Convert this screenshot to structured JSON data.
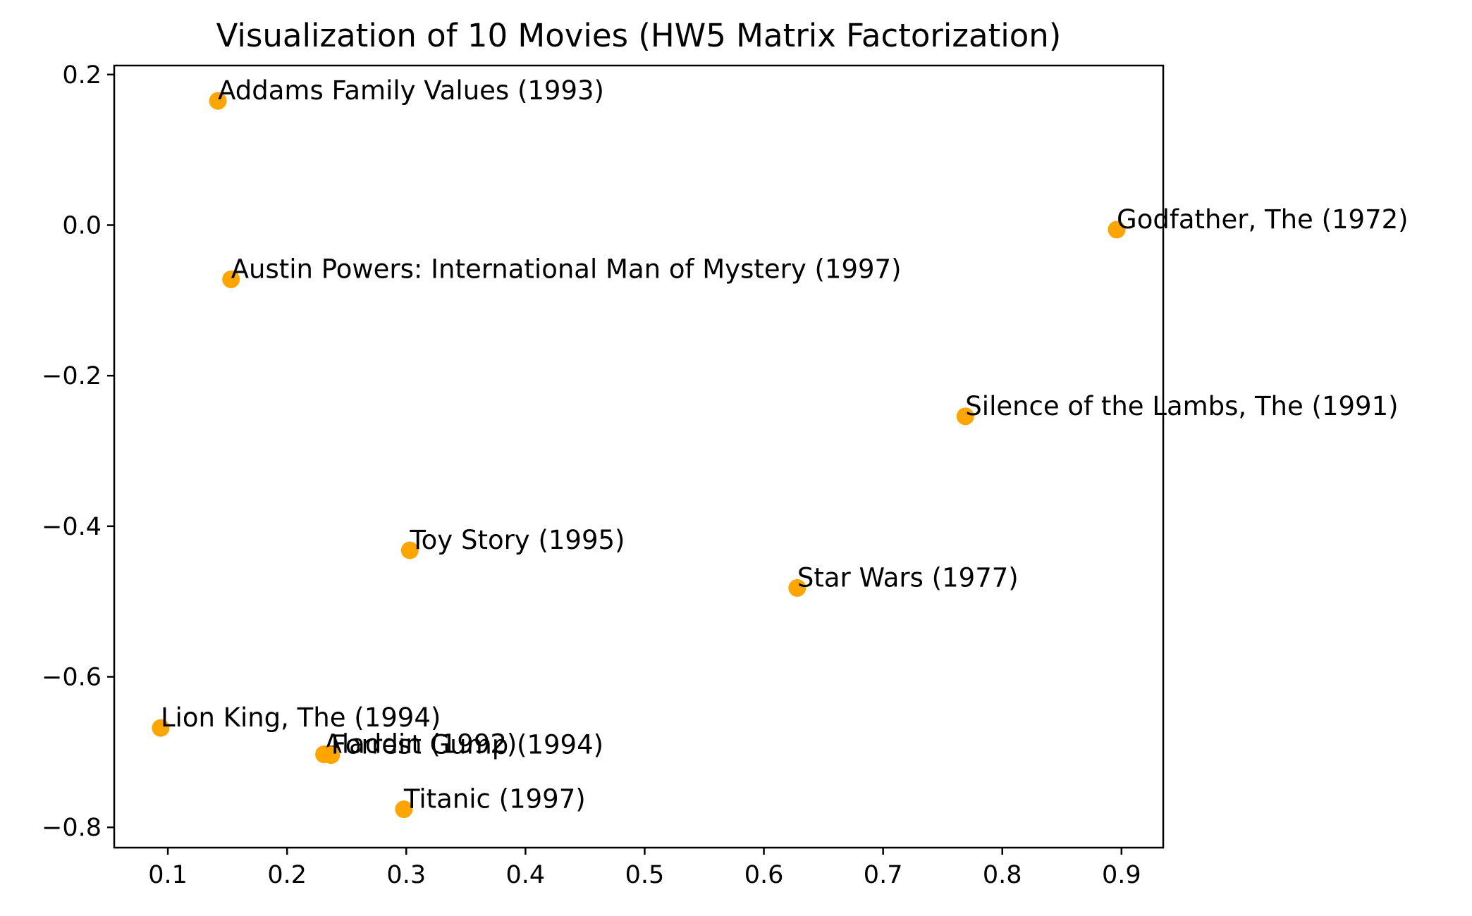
{
  "chart_data": {
    "type": "scatter",
    "title": "Visualization of 10 Movies (HW5 Matrix Factorization)",
    "xlabel": "",
    "ylabel": "",
    "xlim": [
      0.055,
      0.935
    ],
    "ylim": [
      -0.827,
      0.212
    ],
    "xticks": [
      0.1,
      0.2,
      0.3,
      0.4,
      0.5,
      0.6,
      0.7,
      0.8,
      0.9
    ],
    "yticks": [
      0.2,
      0.0,
      -0.2,
      -0.4,
      -0.6,
      -0.8
    ],
    "xtick_labels": [
      "0.1",
      "0.2",
      "0.3",
      "0.4",
      "0.5",
      "0.6",
      "0.7",
      "0.8",
      "0.9"
    ],
    "ytick_labels": [
      "0.2",
      "0.0",
      "−0.2",
      "−0.4",
      "−0.6",
      "−0.8"
    ],
    "grid": false,
    "marker_color": "#ffa500",
    "points": [
      {
        "label": "Addams Family Values (1993)",
        "x": 0.142,
        "y": 0.165
      },
      {
        "label": "Godfather, The (1972)",
        "x": 0.896,
        "y": -0.006
      },
      {
        "label": "Austin Powers: International Man of Mystery (1997)",
        "x": 0.153,
        "y": -0.072
      },
      {
        "label": "Silence of the Lambs, The (1991)",
        "x": 0.769,
        "y": -0.254
      },
      {
        "label": "Toy Story (1995)",
        "x": 0.303,
        "y": -0.432
      },
      {
        "label": "Star Wars (1977)",
        "x": 0.628,
        "y": -0.482
      },
      {
        "label": "Lion King, The (1994)",
        "x": 0.094,
        "y": -0.668
      },
      {
        "label": "Aladdin (1992)",
        "x": 0.231,
        "y": -0.703
      },
      {
        "label": "Forrest Gump (1994)",
        "x": 0.237,
        "y": -0.704
      },
      {
        "label": "Titanic (1997)",
        "x": 0.298,
        "y": -0.776
      }
    ]
  }
}
